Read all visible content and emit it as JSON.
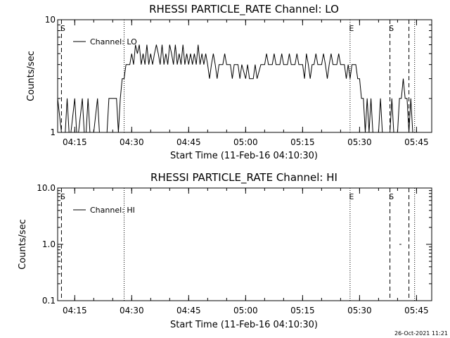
{
  "footer": {
    "timestamp": "26-Oct-2021 11:21"
  },
  "chart_data": [
    {
      "type": "line",
      "title": "RHESSI PARTICLE_RATE Channel: LO",
      "xlabel": "Start Time (11-Feb-16 04:10:30)",
      "ylabel": "Counts/sec",
      "y_scale": "log",
      "ylim": [
        1,
        10
      ],
      "xlim": [
        "04:10:30",
        "05:49:00"
      ],
      "x_ticks": [
        "04:15",
        "04:30",
        "04:45",
        "05:00",
        "05:15",
        "05:30",
        "05:45"
      ],
      "y_ticks": [
        "1",
        "10"
      ],
      "grid": false,
      "legend_position": "top-left",
      "series": [
        {
          "name": "Channel: LO",
          "points": [
            [
              "04:10:30",
              2
            ],
            [
              "04:11:30",
              1
            ],
            [
              "04:12:30",
              1
            ],
            [
              "04:13:00",
              2
            ],
            [
              "04:13:30",
              1
            ],
            [
              "04:14:00",
              1
            ],
            [
              "04:15:00",
              2
            ],
            [
              "04:15:30",
              1
            ],
            [
              "04:16:00",
              1
            ],
            [
              "04:17:00",
              2
            ],
            [
              "04:17:30",
              1
            ],
            [
              "04:18:00",
              1
            ],
            [
              "04:18:30",
              2
            ],
            [
              "04:19:00",
              1
            ],
            [
              "04:20:00",
              1
            ],
            [
              "04:21:00",
              2
            ],
            [
              "04:21:30",
              1
            ],
            [
              "04:23:30",
              1
            ],
            [
              "04:24:00",
              2
            ],
            [
              "04:26:00",
              2
            ],
            [
              "04:26:30",
              1
            ],
            [
              "04:27:00",
              2
            ],
            [
              "04:27:30",
              3
            ],
            [
              "04:28:00",
              3
            ],
            [
              "04:28:30",
              4
            ],
            [
              "04:29:30",
              4
            ],
            [
              "04:30:00",
              5
            ],
            [
              "04:30:30",
              4
            ],
            [
              "04:31:00",
              6
            ],
            [
              "04:31:30",
              5
            ],
            [
              "04:32:00",
              6
            ],
            [
              "04:32:30",
              4
            ],
            [
              "04:33:00",
              5
            ],
            [
              "04:33:30",
              4
            ],
            [
              "04:34:00",
              6
            ],
            [
              "04:34:30",
              4
            ],
            [
              "04:35:00",
              5
            ],
            [
              "04:35:30",
              4
            ],
            [
              "04:36:00",
              5
            ],
            [
              "04:36:30",
              6
            ],
            [
              "04:37:00",
              5
            ],
            [
              "04:37:30",
              4
            ],
            [
              "04:38:00",
              6
            ],
            [
              "04:38:30",
              4
            ],
            [
              "04:39:00",
              5
            ],
            [
              "04:39:30",
              4
            ],
            [
              "04:40:00",
              6
            ],
            [
              "04:40:30",
              5
            ],
            [
              "04:41:00",
              4
            ],
            [
              "04:41:30",
              6
            ],
            [
              "04:42:00",
              4
            ],
            [
              "04:42:30",
              5
            ],
            [
              "04:43:00",
              4
            ],
            [
              "04:43:30",
              6
            ],
            [
              "04:44:00",
              4
            ],
            [
              "04:44:30",
              5
            ],
            [
              "04:45:00",
              4
            ],
            [
              "04:45:30",
              5
            ],
            [
              "04:46:00",
              4
            ],
            [
              "04:46:30",
              5
            ],
            [
              "04:47:00",
              4
            ],
            [
              "04:47:30",
              6
            ],
            [
              "04:48:00",
              4
            ],
            [
              "04:48:30",
              5
            ],
            [
              "04:49:00",
              4
            ],
            [
              "04:49:30",
              5
            ],
            [
              "04:50:00",
              4
            ],
            [
              "04:50:30",
              3
            ],
            [
              "04:51:00",
              4
            ],
            [
              "04:51:30",
              5
            ],
            [
              "04:52:00",
              4
            ],
            [
              "04:52:30",
              3
            ],
            [
              "04:53:00",
              4
            ],
            [
              "04:54:00",
              4
            ],
            [
              "04:54:30",
              5
            ],
            [
              "04:55:00",
              4
            ],
            [
              "04:56:00",
              4
            ],
            [
              "04:56:30",
              3
            ],
            [
              "04:57:00",
              4
            ],
            [
              "04:58:00",
              4
            ],
            [
              "04:58:30",
              3
            ],
            [
              "04:59:00",
              4
            ],
            [
              "05:00:00",
              3
            ],
            [
              "05:00:30",
              4
            ],
            [
              "05:01:00",
              3
            ],
            [
              "05:02:00",
              3
            ],
            [
              "05:02:30",
              4
            ],
            [
              "05:03:00",
              3
            ],
            [
              "05:04:00",
              4
            ],
            [
              "05:05:00",
              4
            ],
            [
              "05:05:30",
              5
            ],
            [
              "05:06:00",
              4
            ],
            [
              "05:07:00",
              4
            ],
            [
              "05:07:30",
              5
            ],
            [
              "05:08:00",
              4
            ],
            [
              "05:09:00",
              4
            ],
            [
              "05:09:30",
              5
            ],
            [
              "05:10:00",
              4
            ],
            [
              "05:11:00",
              4
            ],
            [
              "05:11:30",
              5
            ],
            [
              "05:12:00",
              4
            ],
            [
              "05:13:00",
              4
            ],
            [
              "05:13:30",
              5
            ],
            [
              "05:14:00",
              4
            ],
            [
              "05:15:00",
              4
            ],
            [
              "05:15:30",
              3
            ],
            [
              "05:16:00",
              5
            ],
            [
              "05:16:30",
              4
            ],
            [
              "05:17:00",
              3
            ],
            [
              "05:17:30",
              4
            ],
            [
              "05:18:00",
              4
            ],
            [
              "05:18:30",
              5
            ],
            [
              "05:19:00",
              4
            ],
            [
              "05:20:00",
              4
            ],
            [
              "05:20:30",
              5
            ],
            [
              "05:21:00",
              4
            ],
            [
              "05:21:30",
              3
            ],
            [
              "05:22:00",
              4
            ],
            [
              "05:22:30",
              5
            ],
            [
              "05:23:00",
              4
            ],
            [
              "05:24:00",
              4
            ],
            [
              "05:24:30",
              5
            ],
            [
              "05:25:00",
              4
            ],
            [
              "05:26:00",
              4
            ],
            [
              "05:26:30",
              3
            ],
            [
              "05:27:00",
              4
            ],
            [
              "05:27:30",
              3
            ],
            [
              "05:28:00",
              4
            ],
            [
              "05:29:00",
              4
            ],
            [
              "05:29:30",
              3
            ],
            [
              "05:30:00",
              3
            ],
            [
              "05:30:30",
              2
            ],
            [
              "05:31:00",
              2
            ],
            [
              "05:31:30",
              1
            ],
            [
              "05:32:00",
              2
            ],
            [
              "05:32:30",
              1
            ],
            [
              "05:33:00",
              2
            ],
            [
              "05:33:30",
              1
            ],
            [
              "05:35:00",
              1
            ],
            [
              "05:35:30",
              2
            ],
            [
              "05:36:00",
              1
            ],
            [
              "05:38:00",
              1
            ],
            [
              "05:38:30",
              2
            ],
            [
              "05:39:00",
              1
            ],
            [
              "05:40:00",
              1
            ],
            [
              "05:40:30",
              2
            ],
            [
              "05:41:00",
              2
            ],
            [
              "05:41:30",
              3
            ],
            [
              "05:42:00",
              2
            ],
            [
              "05:42:30",
              2
            ],
            [
              "05:43:00",
              1
            ],
            [
              "05:43:30",
              2
            ],
            [
              "05:44:00",
              1
            ],
            [
              "05:44:30",
              1
            ]
          ]
        }
      ],
      "markers": [
        {
          "label": "S",
          "time": "04:11:30",
          "style": "dashed",
          "label_position": "top"
        },
        {
          "label": "",
          "time": "04:28:00",
          "style": "dotted",
          "label_position": "none"
        },
        {
          "label": "E",
          "time": "05:27:30",
          "style": "dotted",
          "label_position": "top"
        },
        {
          "label": "S",
          "time": "05:38:00",
          "style": "dashed",
          "label_position": "top"
        },
        {
          "label": "",
          "time": "05:43:00",
          "style": "dashed",
          "label_position": "none"
        },
        {
          "label": "",
          "time": "05:44:30",
          "style": "dotted",
          "label_position": "none"
        }
      ]
    },
    {
      "type": "line",
      "title": "RHESSI PARTICLE_RATE Channel: HI",
      "xlabel": "Start Time (11-Feb-16 04:10:30)",
      "ylabel": "Counts/sec",
      "y_scale": "log",
      "ylim": [
        0.1,
        10
      ],
      "xlim": [
        "04:10:30",
        "05:49:00"
      ],
      "x_ticks": [
        "04:15",
        "04:30",
        "04:45",
        "05:00",
        "05:15",
        "05:30",
        "05:45"
      ],
      "y_ticks": [
        "0.1",
        "1.0",
        "10.0"
      ],
      "grid": false,
      "legend_position": "top-left",
      "series": [
        {
          "name": "Channel: HI",
          "points": [
            [
              "05:40:30",
              1
            ],
            [
              "05:41:00",
              1
            ]
          ]
        }
      ],
      "markers": [
        {
          "label": "S",
          "time": "04:11:30",
          "style": "dashed",
          "label_position": "top"
        },
        {
          "label": "",
          "time": "04:28:00",
          "style": "dotted",
          "label_position": "none"
        },
        {
          "label": "E",
          "time": "05:27:30",
          "style": "dotted",
          "label_position": "top"
        },
        {
          "label": "S",
          "time": "05:38:00",
          "style": "dashed",
          "label_position": "top"
        },
        {
          "label": "",
          "time": "05:43:00",
          "style": "dashed",
          "label_position": "none"
        },
        {
          "label": "",
          "time": "05:44:30",
          "style": "dotted",
          "label_position": "none"
        }
      ]
    }
  ]
}
